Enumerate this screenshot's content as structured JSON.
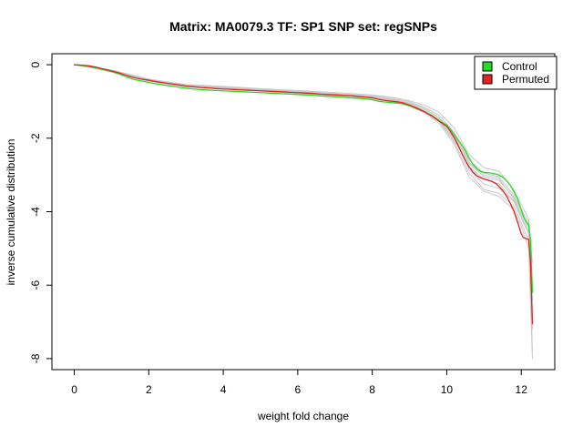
{
  "chart_data": {
    "type": "line",
    "title": "Matrix: MA0079.3 TF: SP1 SNP set: regSNPs",
    "xlabel": "weight fold change",
    "ylabel": "inverse cumulative distribution",
    "xlim": [
      -0.6,
      12.9
    ],
    "ylim": [
      -8.3,
      0.3
    ],
    "xticks": [
      0,
      2,
      4,
      6,
      8,
      10,
      12
    ],
    "yticks": [
      0,
      -2,
      -4,
      -6,
      -8
    ],
    "legend_position": "top-right",
    "colors": {
      "control": "#22dd22",
      "permuted": "#e52222",
      "background_sets": "#c8c8c8",
      "axis": "#000000"
    },
    "series": [
      {
        "name": "Control",
        "x": [
          0.0,
          0.2,
          0.4,
          0.6,
          0.8,
          1.0,
          1.2,
          1.4,
          1.6,
          1.8,
          2.0,
          2.2,
          2.4,
          2.6,
          2.8,
          3.0,
          3.2,
          3.4,
          3.6,
          3.8,
          4.0,
          4.2,
          4.4,
          4.6,
          4.8,
          5.0,
          5.2,
          5.4,
          5.6,
          5.8,
          6.0,
          6.2,
          6.4,
          6.6,
          6.8,
          7.0,
          7.2,
          7.4,
          7.6,
          7.8,
          8.0,
          8.2,
          8.4,
          8.6,
          8.8,
          9.0,
          9.2,
          9.4,
          9.6,
          9.8,
          10.0,
          10.1,
          10.2,
          10.3,
          10.4,
          10.5,
          10.6,
          10.7,
          10.8,
          10.9,
          11.0,
          11.1,
          11.2,
          11.3,
          11.4,
          11.5,
          11.6,
          11.7,
          11.8,
          11.9,
          12.0,
          12.05,
          12.1,
          12.15,
          12.2,
          12.25,
          12.3
        ],
        "values": [
          0.0,
          -0.02,
          -0.05,
          -0.09,
          -0.14,
          -0.19,
          -0.25,
          -0.33,
          -0.4,
          -0.44,
          -0.48,
          -0.52,
          -0.55,
          -0.58,
          -0.61,
          -0.64,
          -0.66,
          -0.68,
          -0.69,
          -0.7,
          -0.71,
          -0.72,
          -0.73,
          -0.74,
          -0.75,
          -0.76,
          -0.77,
          -0.78,
          -0.79,
          -0.8,
          -0.81,
          -0.82,
          -0.83,
          -0.85,
          -0.86,
          -0.87,
          -0.88,
          -0.9,
          -0.91,
          -0.93,
          -0.95,
          -1.0,
          -1.02,
          -1.04,
          -1.06,
          -1.12,
          -1.2,
          -1.28,
          -1.38,
          -1.52,
          -1.64,
          -1.76,
          -1.9,
          -2.04,
          -2.18,
          -2.34,
          -2.54,
          -2.7,
          -2.82,
          -2.9,
          -2.93,
          -2.94,
          -2.95,
          -2.97,
          -3.0,
          -3.06,
          -3.15,
          -3.27,
          -3.45,
          -3.65,
          -3.95,
          -4.1,
          -4.22,
          -4.3,
          -4.35,
          -4.8,
          -6.2
        ]
      },
      {
        "name": "Permuted",
        "x": [
          0.0,
          0.2,
          0.4,
          0.6,
          0.8,
          1.0,
          1.2,
          1.4,
          1.6,
          1.8,
          2.0,
          2.2,
          2.4,
          2.6,
          2.8,
          3.0,
          3.2,
          3.4,
          3.6,
          3.8,
          4.0,
          4.2,
          4.4,
          4.6,
          4.8,
          5.0,
          5.2,
          5.4,
          5.6,
          5.8,
          6.0,
          6.2,
          6.4,
          6.6,
          6.8,
          7.0,
          7.2,
          7.4,
          7.6,
          7.8,
          8.0,
          8.2,
          8.4,
          8.6,
          8.8,
          9.0,
          9.2,
          9.4,
          9.6,
          9.8,
          10.0,
          10.1,
          10.2,
          10.3,
          10.4,
          10.5,
          10.6,
          10.7,
          10.8,
          10.9,
          11.0,
          11.1,
          11.2,
          11.3,
          11.4,
          11.5,
          11.6,
          11.7,
          11.8,
          11.9,
          12.0,
          12.05,
          12.1,
          12.15,
          12.2,
          12.25,
          12.3
        ],
        "values": [
          0.0,
          -0.01,
          -0.03,
          -0.07,
          -0.12,
          -0.17,
          -0.22,
          -0.29,
          -0.35,
          -0.39,
          -0.42,
          -0.46,
          -0.49,
          -0.52,
          -0.55,
          -0.58,
          -0.6,
          -0.62,
          -0.63,
          -0.65,
          -0.66,
          -0.67,
          -0.68,
          -0.69,
          -0.7,
          -0.71,
          -0.72,
          -0.73,
          -0.74,
          -0.75,
          -0.76,
          -0.77,
          -0.78,
          -0.8,
          -0.81,
          -0.82,
          -0.83,
          -0.84,
          -0.86,
          -0.88,
          -0.9,
          -0.95,
          -0.98,
          -1.0,
          -1.03,
          -1.1,
          -1.18,
          -1.28,
          -1.4,
          -1.54,
          -1.68,
          -1.82,
          -1.98,
          -2.18,
          -2.4,
          -2.6,
          -2.78,
          -2.92,
          -3.02,
          -3.07,
          -3.11,
          -3.14,
          -3.17,
          -3.22,
          -3.31,
          -3.42,
          -3.56,
          -3.76,
          -3.98,
          -4.28,
          -4.6,
          -4.7,
          -4.72,
          -4.74,
          -4.76,
          -5.4,
          -7.05
        ]
      }
    ],
    "background_sets": [
      {
        "x": [
          0.0,
          1.0,
          2.0,
          3.0,
          4.0,
          5.0,
          6.0,
          7.0,
          8.0,
          8.6,
          9.0,
          9.4,
          9.8,
          10.2,
          10.6,
          11.0,
          11.4,
          11.8,
          12.0,
          12.2,
          12.3
        ],
        "values": [
          0.0,
          -0.15,
          -0.4,
          -0.55,
          -0.6,
          -0.66,
          -0.71,
          -0.76,
          -0.82,
          -0.9,
          -0.98,
          -1.1,
          -1.3,
          -1.72,
          -2.45,
          -2.8,
          -2.9,
          -3.4,
          -3.8,
          -4.2,
          -5.4
        ]
      },
      {
        "x": [
          0.0,
          1.0,
          2.0,
          3.0,
          4.0,
          5.0,
          6.0,
          7.0,
          8.0,
          8.6,
          9.0,
          9.4,
          9.8,
          10.2,
          10.6,
          11.0,
          11.4,
          11.8,
          12.0,
          12.2,
          12.3
        ],
        "values": [
          0.0,
          -0.16,
          -0.42,
          -0.57,
          -0.63,
          -0.69,
          -0.74,
          -0.8,
          -0.87,
          -0.96,
          -1.05,
          -1.2,
          -1.45,
          -1.9,
          -2.7,
          -3.05,
          -3.15,
          -3.6,
          -4.05,
          -4.4,
          -6.0
        ]
      },
      {
        "x": [
          0.0,
          1.0,
          2.0,
          3.0,
          4.0,
          5.0,
          6.0,
          7.0,
          8.0,
          8.6,
          9.0,
          9.4,
          9.8,
          10.2,
          10.6,
          11.0,
          11.4,
          11.8,
          12.0,
          12.2,
          12.3
        ],
        "values": [
          0.0,
          -0.18,
          -0.44,
          -0.59,
          -0.65,
          -0.71,
          -0.77,
          -0.83,
          -0.9,
          -1.0,
          -1.1,
          -1.27,
          -1.55,
          -2.1,
          -2.95,
          -3.4,
          -3.5,
          -3.85,
          -4.3,
          -4.8,
          -6.8
        ]
      },
      {
        "x": [
          0.0,
          1.0,
          2.0,
          3.0,
          4.0,
          5.0,
          6.0,
          7.0,
          8.0,
          8.6,
          9.0,
          9.4,
          9.8,
          10.2,
          10.6,
          11.0,
          11.4,
          11.8,
          12.0,
          12.2,
          12.3
        ],
        "values": [
          0.0,
          -0.17,
          -0.43,
          -0.58,
          -0.64,
          -0.7,
          -0.75,
          -0.82,
          -0.88,
          -0.97,
          -1.08,
          -1.24,
          -1.5,
          -2.0,
          -2.85,
          -3.25,
          -3.36,
          -3.72,
          -4.18,
          -4.6,
          -7.2
        ]
      },
      {
        "x": [
          0.0,
          1.0,
          2.0,
          3.0,
          4.0,
          5.0,
          6.0,
          7.0,
          8.0,
          8.6,
          9.0,
          9.4,
          9.8,
          10.2,
          10.6,
          11.0,
          11.4,
          11.8,
          12.0,
          12.2,
          12.3
        ],
        "values": [
          0.0,
          -0.14,
          -0.39,
          -0.54,
          -0.59,
          -0.65,
          -0.7,
          -0.76,
          -0.83,
          -0.92,
          -1.01,
          -1.16,
          -1.38,
          -1.84,
          -2.6,
          -2.95,
          -3.05,
          -3.55,
          -3.95,
          -4.3,
          -6.4
        ]
      },
      {
        "x": [
          0.0,
          1.0,
          2.0,
          3.0,
          4.0,
          5.0,
          6.0,
          7.0,
          8.0,
          8.6,
          9.0,
          9.4,
          9.8,
          10.2,
          10.6,
          11.0,
          11.4,
          11.8,
          12.0,
          12.2,
          12.3
        ],
        "values": [
          0.0,
          -0.17,
          -0.43,
          -0.58,
          -0.64,
          -0.7,
          -0.75,
          -0.81,
          -0.88,
          -0.98,
          -1.09,
          -1.25,
          -1.52,
          -2.04,
          -2.78,
          -3.12,
          -3.24,
          -3.7,
          -4.12,
          -4.55,
          -7.8
        ]
      },
      {
        "x": [
          0.0,
          1.0,
          2.0,
          3.0,
          4.0,
          5.0,
          6.0,
          7.0,
          8.0,
          8.6,
          9.0,
          9.4,
          9.8,
          10.2,
          10.6,
          11.0,
          11.4,
          11.8,
          12.0,
          12.2,
          12.3
        ],
        "values": [
          0.0,
          -0.16,
          -0.41,
          -0.56,
          -0.62,
          -0.68,
          -0.73,
          -0.79,
          -0.86,
          -0.95,
          -1.04,
          -1.19,
          -1.44,
          -1.92,
          -2.66,
          -3.0,
          -3.1,
          -3.65,
          -4.05,
          -4.45,
          -6.7
        ]
      },
      {
        "x": [
          0.0,
          1.0,
          2.0,
          3.0,
          4.0,
          5.0,
          6.0,
          7.0,
          8.0,
          8.6,
          9.0,
          9.4,
          9.8,
          10.2,
          10.6,
          11.0,
          11.4,
          11.8,
          12.0,
          12.2,
          12.3
        ],
        "values": [
          0.0,
          -0.18,
          -0.45,
          -0.6,
          -0.66,
          -0.72,
          -0.78,
          -0.84,
          -0.91,
          -1.02,
          -1.12,
          -1.31,
          -1.6,
          -2.16,
          -3.05,
          -3.45,
          -3.58,
          -3.95,
          -4.4,
          -5.0,
          -8.0
        ]
      }
    ],
    "legend": [
      {
        "label": "Control",
        "color": "#22dd22"
      },
      {
        "label": "Permuted",
        "color": "#e52222"
      }
    ]
  }
}
